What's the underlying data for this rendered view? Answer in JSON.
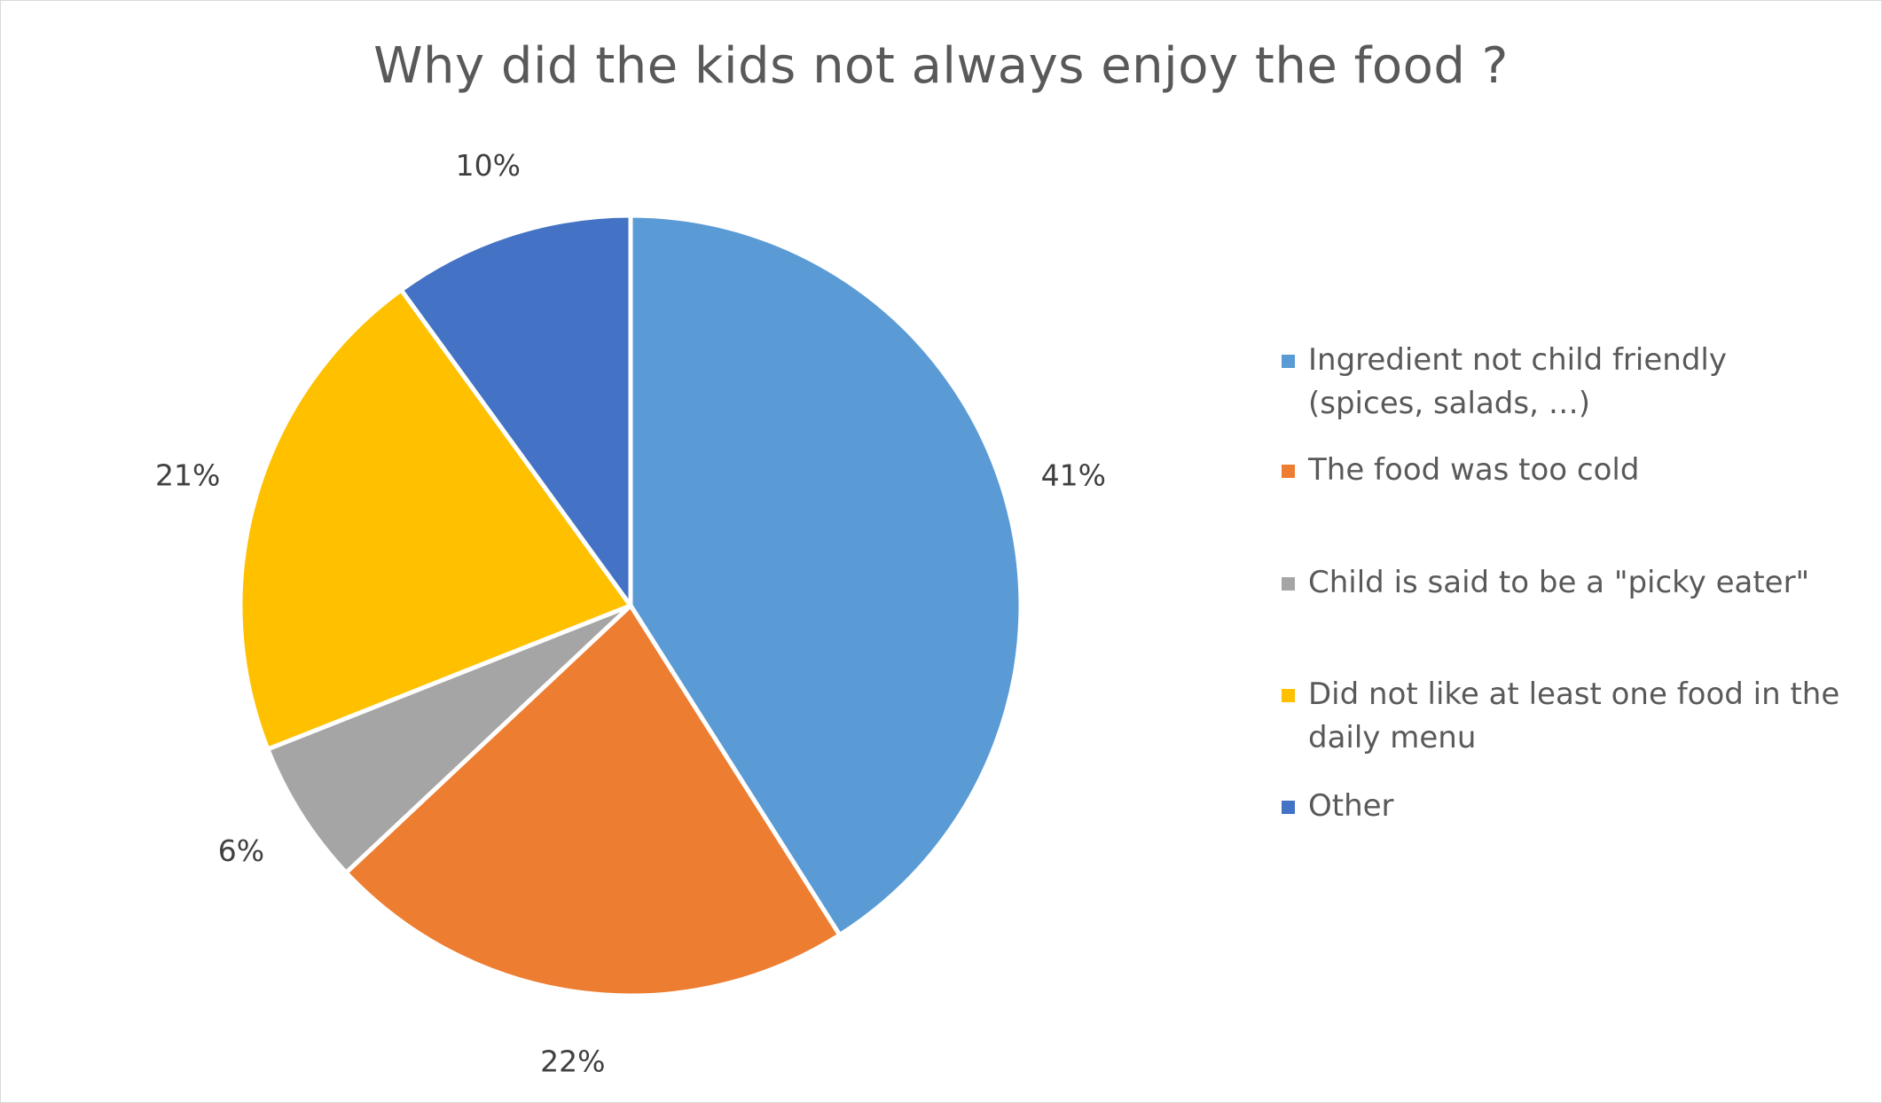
{
  "chart_data": {
    "type": "pie",
    "title": "Why did the kids not always enjoy the food ?",
    "categories": [
      "Ingredient not child friendly (spices, salads, …)",
      "The food was too cold",
      "Child is said to be a \"picky eater\"",
      "Did not like at least one food in the daily menu",
      "Other"
    ],
    "values": [
      41,
      22,
      6,
      21,
      10
    ],
    "value_labels": [
      "41%",
      "22%",
      "6%",
      "21%",
      "10%"
    ],
    "colors": [
      "#5b9bd5",
      "#ed7d31",
      "#a5a5a5",
      "#ffc000",
      "#4472c4"
    ],
    "legend_position": "right"
  }
}
